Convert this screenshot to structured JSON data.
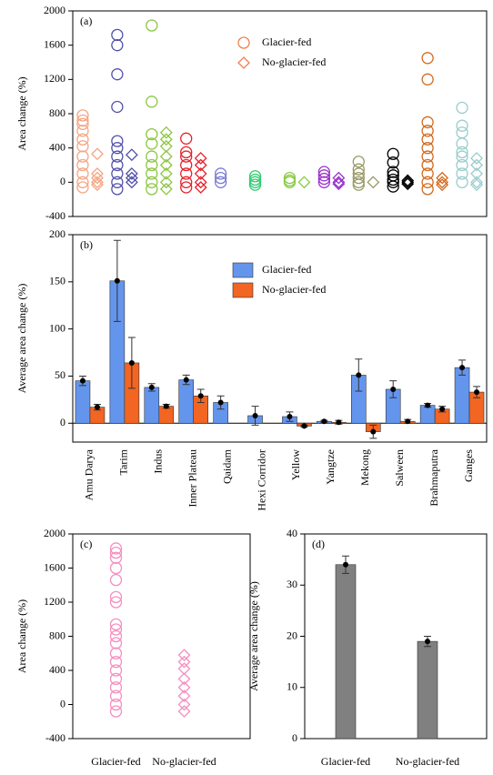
{
  "chart_data": [
    {
      "type": "scatter",
      "panel_label": "(a)",
      "ylabel": "Area change (%)",
      "ylim": [
        -400,
        2000
      ],
      "yticks": [
        -400,
        0,
        400,
        800,
        1200,
        1600,
        2000
      ],
      "categories": [
        null,
        null,
        null,
        null,
        null,
        null,
        null,
        null,
        null,
        null,
        null,
        null
      ],
      "category_colors": [
        "#f4a582",
        "#5050a8",
        "#8cc63f",
        "#e8202a",
        "#7b7bd0",
        "#2ecc71",
        "#88cc44",
        "#9933cc",
        "#999966",
        "#000000",
        "#d2691e",
        "#99cccc"
      ],
      "legend": "top-center",
      "series": [
        {
          "name": "Glacier-fed",
          "color": "#f08050",
          "marker": "circle",
          "values": [
            [
              780,
              720,
              680,
              600,
              500,
              420,
              300,
              200,
              100,
              0,
              -60
            ],
            [
              1720,
              1600,
              1260,
              880,
              480,
              400,
              300,
              200,
              100,
              0,
              -80
            ],
            [
              1830,
              940,
              560,
              450,
              300,
              200,
              100,
              0,
              -80
            ],
            [
              510,
              350,
              300,
              200,
              100,
              0,
              -60
            ],
            [
              100,
              50,
              0
            ],
            [
              70,
              30,
              0,
              -30
            ],
            [
              50,
              20,
              0
            ],
            [
              120,
              80,
              40,
              0
            ],
            [
              240,
              150,
              100,
              50,
              0,
              -30
            ],
            [
              330,
              230,
              120,
              80,
              30,
              0,
              -50
            ],
            [
              1450,
              1200,
              700,
              600,
              500,
              400,
              300,
              200,
              100,
              0,
              -80
            ],
            [
              870,
              660,
              580,
              450,
              350,
              300,
              200,
              100,
              0
            ]
          ]
        },
        {
          "name": "No-glacier-fed",
          "color": "#f08050",
          "marker": "diamond",
          "values": [
            [
              330,
              100,
              50,
              0,
              -30
            ],
            [
              320,
              100,
              50,
              0
            ],
            [
              580,
              500,
              420,
              300,
              200,
              100,
              0,
              -80
            ],
            [
              280,
              200,
              100,
              0,
              -60
            ],
            [],
            [],
            [
              0
            ],
            [
              50,
              0,
              -20
            ],
            [
              0
            ],
            [
              20,
              0,
              -20
            ],
            [
              50,
              0,
              -30
            ],
            [
              280,
              200,
              100,
              0,
              -30
            ]
          ]
        }
      ]
    },
    {
      "type": "bar",
      "panel_label": "(b)",
      "ylabel": "Average area change (%)",
      "ylim": [
        -20,
        200
      ],
      "yticks": [
        0,
        50,
        100,
        150,
        200
      ],
      "zero_line": true,
      "legend": "top-center",
      "categories": [
        "Amu Darya",
        "Tarim",
        "Indus",
        "Inner Plateau",
        "Qaidam",
        "Hexi Corridor",
        "Yellow",
        "Yangtze",
        "Mekong",
        "Salween",
        "Brahmaputra",
        "Ganges"
      ],
      "series": [
        {
          "name": "Glacier-fed",
          "color": "#6495ed",
          "values": [
            45,
            151,
            38,
            46,
            22,
            8,
            7,
            2,
            51,
            36,
            19,
            59
          ],
          "errors": [
            5,
            43,
            4,
            5,
            7,
            10,
            5,
            1,
            17,
            9,
            2,
            8
          ]
        },
        {
          "name": "No-glacier-fed",
          "color": "#f26522",
          "values": [
            17,
            64,
            18,
            29,
            null,
            null,
            -3,
            1,
            -9,
            2,
            15,
            33
          ],
          "errors": [
            3,
            27,
            2,
            7,
            null,
            null,
            1,
            2,
            7,
            2,
            3,
            6
          ]
        }
      ]
    },
    {
      "type": "scatter",
      "panel_label": "(c)",
      "ylabel": "Area change (%)",
      "ylim": [
        -400,
        2000
      ],
      "yticks": [
        -400,
        0,
        400,
        800,
        1200,
        1600,
        2000
      ],
      "categories": [
        "Glacier-fed",
        "No-glacier-fed"
      ],
      "category_colors": [
        "#f48fc1",
        "#f48fc1"
      ],
      "series": [
        {
          "color": "#f48fc1",
          "marker": "circle",
          "values": [
            [
              1830,
              1780,
              1720,
              1600,
              1460,
              1260,
              1200,
              940,
              880,
              800,
              720,
              600,
              500,
              400,
              300,
              200,
              100,
              0,
              -80
            ],
            null
          ]
        },
        {
          "color": "#f48fc1",
          "marker": "diamond",
          "values": [
            null,
            [
              580,
              500,
              420,
              300,
              200,
              100,
              0,
              -80
            ]
          ]
        }
      ]
    },
    {
      "type": "bar",
      "panel_label": "(d)",
      "ylabel": "Average area change (%)",
      "ylim": [
        0,
        40
      ],
      "yticks": [
        0,
        10,
        20,
        30,
        40
      ],
      "categories": [
        "Glacier-fed",
        "No-glacier-fed"
      ],
      "series": [
        {
          "color": "#808080",
          "values": [
            34,
            19
          ],
          "errors": [
            1.7,
            1.0
          ]
        }
      ]
    }
  ]
}
